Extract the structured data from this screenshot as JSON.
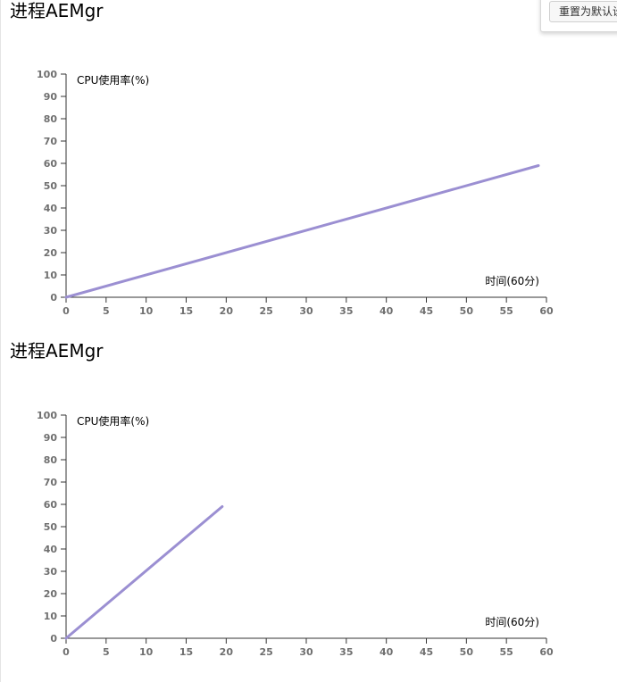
{
  "toolbar": {
    "reset_label": "重置为默认设置"
  },
  "line_color": "#9b8fd2",
  "axis_color": "#333333",
  "chart_data": [
    {
      "type": "line",
      "title": "进程AEMgr",
      "ylabel": "CPU使用率(%)",
      "xlabel": "时间(60分)",
      "xlim": [
        0,
        60
      ],
      "ylim": [
        0,
        100
      ],
      "xticks": [
        0,
        5,
        10,
        15,
        20,
        25,
        30,
        35,
        40,
        45,
        50,
        55,
        60
      ],
      "yticks": [
        0,
        10,
        20,
        30,
        40,
        50,
        60,
        70,
        80,
        90,
        100
      ],
      "grid": false,
      "series": [
        {
          "x": [
            0,
            59
          ],
          "y": [
            0,
            59
          ]
        }
      ]
    },
    {
      "type": "line",
      "title": "进程AEMgr",
      "ylabel": "CPU使用率(%)",
      "xlabel": "时间(60分)",
      "xlim": [
        0,
        60
      ],
      "ylim": [
        0,
        100
      ],
      "xticks": [
        0,
        5,
        10,
        15,
        20,
        25,
        30,
        35,
        40,
        45,
        50,
        55,
        60
      ],
      "yticks": [
        0,
        10,
        20,
        30,
        40,
        50,
        60,
        70,
        80,
        90,
        100
      ],
      "grid": false,
      "series": [
        {
          "x": [
            0,
            19.5
          ],
          "y": [
            0,
            59
          ]
        }
      ]
    }
  ]
}
